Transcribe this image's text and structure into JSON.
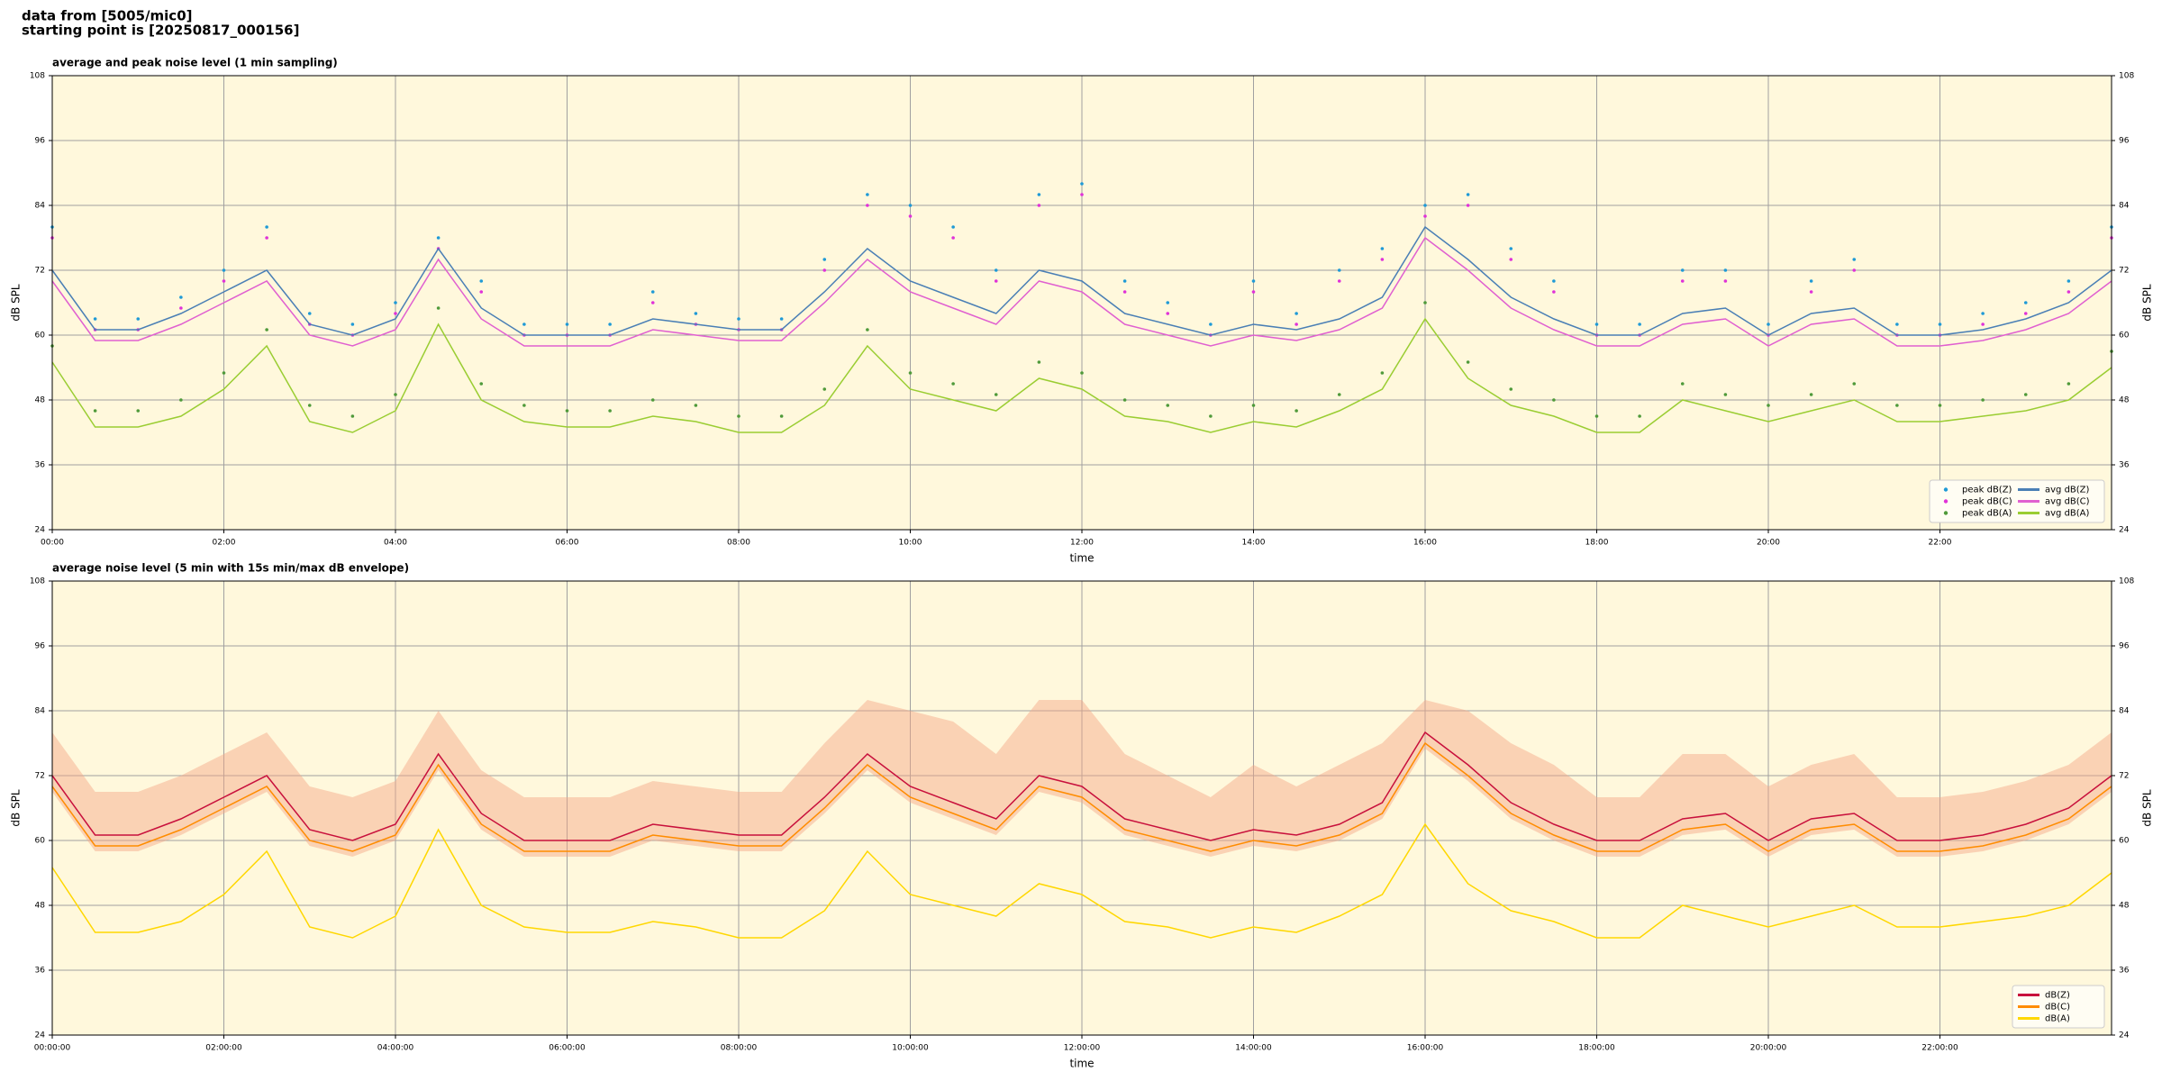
{
  "header": {
    "lines": [
      "data from [5005/mic0]",
      "starting point is [20250817_000156]"
    ]
  },
  "chart_data": [
    {
      "type": "line",
      "title": "average and peak noise level (1 min sampling)",
      "xlabel": "time",
      "ylabel": "dB SPL",
      "x": [
        0,
        30,
        60,
        90,
        120,
        150,
        180,
        210,
        240,
        270,
        300,
        330,
        360,
        390,
        420,
        450,
        480,
        510,
        540,
        570,
        600,
        630,
        660,
        690,
        720,
        750,
        780,
        810,
        840,
        870,
        900,
        930,
        960,
        990,
        1020,
        1050,
        1080,
        1110,
        1140,
        1170,
        1200,
        1230,
        1260,
        1290,
        1320,
        1350,
        1380,
        1410,
        1440
      ],
      "xlim": [
        0,
        1440
      ],
      "xticks": [
        {
          "value": 0,
          "label": "00:00"
        },
        {
          "value": 120,
          "label": "02:00"
        },
        {
          "value": 240,
          "label": "04:00"
        },
        {
          "value": 360,
          "label": "06:00"
        },
        {
          "value": 480,
          "label": "08:00"
        },
        {
          "value": 600,
          "label": "10:00"
        },
        {
          "value": 720,
          "label": "12:00"
        },
        {
          "value": 840,
          "label": "14:00"
        },
        {
          "value": 960,
          "label": "16:00"
        },
        {
          "value": 1080,
          "label": "18:00"
        },
        {
          "value": 1200,
          "label": "20:00"
        },
        {
          "value": 1320,
          "label": "22:00"
        }
      ],
      "ylim": [
        24,
        108
      ],
      "yticks": [
        24,
        36,
        48,
        60,
        72,
        84,
        96,
        108
      ],
      "grid": true,
      "legend": "lower right",
      "legend_columns": 2,
      "series": [
        {
          "name": "peak dB(Z)",
          "style": "markers",
          "color": "#1f9ad6",
          "values": [
            80,
            63,
            63,
            67,
            72,
            80,
            64,
            62,
            66,
            78,
            70,
            62,
            62,
            62,
            68,
            64,
            63,
            63,
            74,
            86,
            84,
            80,
            72,
            86,
            88,
            70,
            66,
            62,
            70,
            64,
            72,
            76,
            84,
            86,
            76,
            70,
            62,
            62,
            72,
            72,
            62,
            70,
            74,
            62,
            62,
            64,
            66,
            70,
            80
          ]
        },
        {
          "name": "peak dB(C)",
          "style": "markers",
          "color": "#e032d8",
          "values": [
            78,
            61,
            61,
            65,
            70,
            78,
            62,
            60,
            64,
            76,
            68,
            60,
            60,
            60,
            66,
            62,
            61,
            61,
            72,
            84,
            82,
            78,
            70,
            84,
            86,
            68,
            64,
            60,
            68,
            62,
            70,
            74,
            82,
            84,
            74,
            68,
            60,
            60,
            70,
            70,
            60,
            68,
            72,
            60,
            60,
            62,
            64,
            68,
            78
          ]
        },
        {
          "name": "peak dB(A)",
          "style": "markers",
          "color": "#4f9a3a",
          "values": [
            58,
            46,
            46,
            48,
            53,
            61,
            47,
            45,
            49,
            65,
            51,
            47,
            46,
            46,
            48,
            47,
            45,
            45,
            50,
            61,
            53,
            51,
            49,
            55,
            53,
            48,
            47,
            45,
            47,
            46,
            49,
            53,
            66,
            55,
            50,
            48,
            45,
            45,
            51,
            49,
            47,
            49,
            51,
            47,
            47,
            48,
            49,
            51,
            57
          ]
        },
        {
          "name": "avg dB(Z)",
          "style": "line",
          "color": "#4a7fb5",
          "values": [
            72,
            61,
            61,
            64,
            68,
            72,
            62,
            60,
            63,
            76,
            65,
            60,
            60,
            60,
            63,
            62,
            61,
            61,
            68,
            76,
            70,
            67,
            64,
            72,
            70,
            64,
            62,
            60,
            62,
            61,
            63,
            67,
            80,
            74,
            67,
            63,
            60,
            60,
            64,
            65,
            60,
            64,
            65,
            60,
            60,
            61,
            63,
            66,
            72
          ]
        },
        {
          "name": "avg dB(C)",
          "style": "line",
          "color": "#e060d0",
          "values": [
            70,
            59,
            59,
            62,
            66,
            70,
            60,
            58,
            61,
            74,
            63,
            58,
            58,
            58,
            61,
            60,
            59,
            59,
            66,
            74,
            68,
            65,
            62,
            70,
            68,
            62,
            60,
            58,
            60,
            59,
            61,
            65,
            78,
            72,
            65,
            61,
            58,
            58,
            62,
            63,
            58,
            62,
            63,
            58,
            58,
            59,
            61,
            64,
            70
          ]
        },
        {
          "name": "avg dB(A)",
          "style": "line",
          "color": "#9acd32",
          "values": [
            55,
            43,
            43,
            45,
            50,
            58,
            44,
            42,
            46,
            62,
            48,
            44,
            43,
            43,
            45,
            44,
            42,
            42,
            47,
            58,
            50,
            48,
            46,
            52,
            50,
            45,
            44,
            42,
            44,
            43,
            46,
            50,
            63,
            52,
            47,
            45,
            42,
            42,
            48,
            46,
            44,
            46,
            48,
            44,
            44,
            45,
            46,
            48,
            54
          ]
        }
      ]
    },
    {
      "type": "line",
      "title": "average noise level (5 min with 15s min/max dB envelope)",
      "xlabel": "time",
      "ylabel": "dB SPL",
      "x": [
        0,
        30,
        60,
        90,
        120,
        150,
        180,
        210,
        240,
        270,
        300,
        330,
        360,
        390,
        420,
        450,
        480,
        510,
        540,
        570,
        600,
        630,
        660,
        690,
        720,
        750,
        780,
        810,
        840,
        870,
        900,
        930,
        960,
        990,
        1020,
        1050,
        1080,
        1110,
        1140,
        1170,
        1200,
        1230,
        1260,
        1290,
        1320,
        1350,
        1380,
        1410,
        1440
      ],
      "xlim": [
        0,
        1440
      ],
      "xticks": [
        {
          "value": 0,
          "label": "00:00:00"
        },
        {
          "value": 120,
          "label": "02:00:00"
        },
        {
          "value": 240,
          "label": "04:00:00"
        },
        {
          "value": 360,
          "label": "06:00:00"
        },
        {
          "value": 480,
          "label": "08:00:00"
        },
        {
          "value": 600,
          "label": "10:00:00"
        },
        {
          "value": 720,
          "label": "12:00:00"
        },
        {
          "value": 840,
          "label": "14:00:00"
        },
        {
          "value": 960,
          "label": "16:00:00"
        },
        {
          "value": 1080,
          "label": "18:00:00"
        },
        {
          "value": 1200,
          "label": "20:00:00"
        },
        {
          "value": 1320,
          "label": "22:00:00"
        }
      ],
      "ylim": [
        24,
        108
      ],
      "yticks": [
        24,
        36,
        48,
        60,
        72,
        84,
        96,
        108
      ],
      "grid": true,
      "legend": "lower right",
      "legend_columns": 1,
      "band": {
        "color": "#f4a582",
        "low": [
          69,
          58,
          58,
          61,
          65,
          69,
          59,
          57,
          60,
          73,
          62,
          57,
          57,
          57,
          60,
          59,
          58,
          58,
          65,
          73,
          67,
          64,
          61,
          69,
          67,
          61,
          59,
          57,
          59,
          58,
          60,
          64,
          77,
          71,
          64,
          60,
          57,
          57,
          61,
          62,
          57,
          61,
          62,
          57,
          57,
          58,
          60,
          63,
          69
        ],
        "high": [
          80,
          69,
          69,
          72,
          76,
          80,
          70,
          68,
          71,
          84,
          73,
          68,
          68,
          68,
          71,
          70,
          69,
          69,
          78,
          86,
          84,
          82,
          76,
          86,
          86,
          76,
          72,
          68,
          74,
          70,
          74,
          78,
          86,
          84,
          78,
          74,
          68,
          68,
          76,
          76,
          70,
          74,
          76,
          68,
          68,
          69,
          71,
          74,
          80
        ]
      },
      "series": [
        {
          "name": "dB(Z)",
          "style": "line",
          "color": "#c8103c",
          "values": [
            72,
            61,
            61,
            64,
            68,
            72,
            62,
            60,
            63,
            76,
            65,
            60,
            60,
            60,
            63,
            62,
            61,
            61,
            68,
            76,
            70,
            67,
            64,
            72,
            70,
            64,
            62,
            60,
            62,
            61,
            63,
            67,
            80,
            74,
            67,
            63,
            60,
            60,
            64,
            65,
            60,
            64,
            65,
            60,
            60,
            61,
            63,
            66,
            72
          ]
        },
        {
          "name": "dB(C)",
          "style": "line",
          "color": "#ff8c00",
          "values": [
            70,
            59,
            59,
            62,
            66,
            70,
            60,
            58,
            61,
            74,
            63,
            58,
            58,
            58,
            61,
            60,
            59,
            59,
            66,
            74,
            68,
            65,
            62,
            70,
            68,
            62,
            60,
            58,
            60,
            59,
            61,
            65,
            78,
            72,
            65,
            61,
            58,
            58,
            62,
            63,
            58,
            62,
            63,
            58,
            58,
            59,
            61,
            64,
            70
          ]
        },
        {
          "name": "dB(A)",
          "style": "line",
          "color": "#ffd700",
          "values": [
            55,
            43,
            43,
            45,
            50,
            58,
            44,
            42,
            46,
            62,
            48,
            44,
            43,
            43,
            45,
            44,
            42,
            42,
            47,
            58,
            50,
            48,
            46,
            52,
            50,
            45,
            44,
            42,
            44,
            43,
            46,
            50,
            63,
            52,
            47,
            45,
            42,
            42,
            48,
            46,
            44,
            46,
            48,
            44,
            44,
            45,
            46,
            48,
            54
          ]
        }
      ]
    }
  ]
}
